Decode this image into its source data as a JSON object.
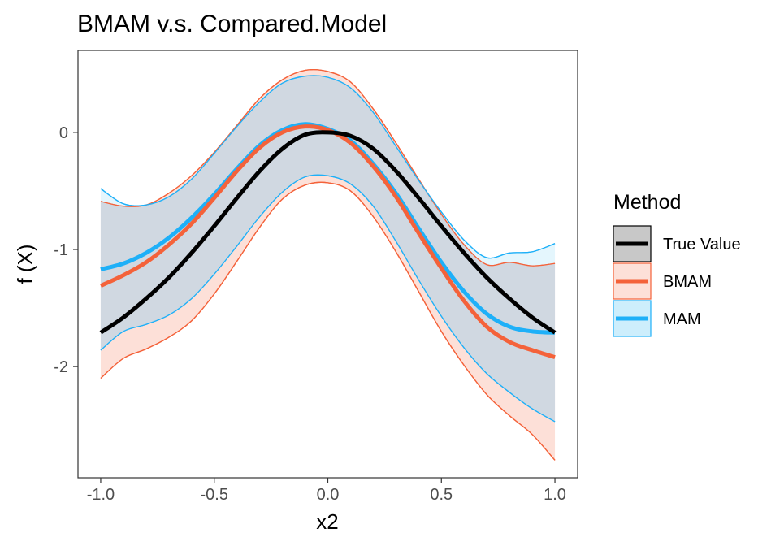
{
  "chart_data": {
    "type": "line",
    "title": "BMAM v.s. Compared.Model",
    "xlabel": "x2",
    "ylabel": "f (X)",
    "xlim": [
      -1.1,
      1.1
    ],
    "ylim": [
      -2.95,
      0.7
    ],
    "xticks": [
      -1.0,
      -0.5,
      0.0,
      0.5,
      1.0
    ],
    "xtick_labels": [
      "-1.0",
      "-0.5",
      "0.0",
      "0.5",
      "1.0"
    ],
    "yticks": [
      -2,
      -1,
      0
    ],
    "ytick_labels": [
      "-2",
      "-1",
      "0"
    ],
    "grid": false,
    "legend": {
      "title": "Method",
      "position": "right",
      "entries": [
        "True Value",
        "BMAM",
        "MAM"
      ]
    },
    "x": [
      -1.0,
      -0.9,
      -0.8,
      -0.7,
      -0.6,
      -0.5,
      -0.4,
      -0.3,
      -0.2,
      -0.1,
      0.0,
      0.1,
      0.2,
      0.3,
      0.4,
      0.5,
      0.6,
      0.7,
      0.8,
      0.9,
      1.0
    ],
    "series": [
      {
        "name": "True Value",
        "color": "#000000",
        "fill": "#c8c8c8",
        "values": [
          -1.71,
          -1.58,
          -1.42,
          -1.24,
          -1.03,
          -0.8,
          -0.56,
          -0.33,
          -0.14,
          -0.02,
          0.0,
          -0.03,
          -0.14,
          -0.33,
          -0.56,
          -0.8,
          -1.03,
          -1.24,
          -1.42,
          -1.58,
          -1.71
        ]
      },
      {
        "name": "BMAM",
        "color": "#f4623a",
        "fill": "#fde0d8",
        "values": [
          -1.31,
          -1.22,
          -1.11,
          -0.96,
          -0.78,
          -0.56,
          -0.33,
          -0.13,
          0.0,
          0.05,
          0.02,
          -0.09,
          -0.29,
          -0.55,
          -0.86,
          -1.16,
          -1.44,
          -1.66,
          -1.79,
          -1.86,
          -1.92
        ],
        "lower": [
          -2.1,
          -1.93,
          -1.85,
          -1.75,
          -1.61,
          -1.38,
          -1.1,
          -0.81,
          -0.57,
          -0.45,
          -0.43,
          -0.5,
          -0.72,
          -1.02,
          -1.36,
          -1.7,
          -1.99,
          -2.24,
          -2.42,
          -2.58,
          -2.8
        ],
        "upper": [
          -0.59,
          -0.63,
          -0.62,
          -0.52,
          -0.37,
          -0.17,
          0.06,
          0.29,
          0.45,
          0.53,
          0.52,
          0.43,
          0.2,
          -0.09,
          -0.4,
          -0.7,
          -0.96,
          -1.13,
          -1.11,
          -1.14,
          -1.12
        ]
      },
      {
        "name": "MAM",
        "color": "#1eb0f8",
        "fill": "#cdeefc",
        "values": [
          -1.17,
          -1.12,
          -1.03,
          -0.9,
          -0.73,
          -0.53,
          -0.31,
          -0.11,
          0.02,
          0.07,
          0.03,
          -0.07,
          -0.27,
          -0.52,
          -0.82,
          -1.11,
          -1.36,
          -1.55,
          -1.66,
          -1.7,
          -1.71
        ],
        "lower": [
          -1.86,
          -1.7,
          -1.64,
          -1.56,
          -1.42,
          -1.21,
          -0.97,
          -0.72,
          -0.51,
          -0.38,
          -0.37,
          -0.44,
          -0.63,
          -0.93,
          -1.26,
          -1.57,
          -1.84,
          -2.06,
          -2.22,
          -2.36,
          -2.47
        ],
        "upper": [
          -0.48,
          -0.61,
          -0.62,
          -0.55,
          -0.4,
          -0.18,
          0.05,
          0.26,
          0.42,
          0.48,
          0.47,
          0.38,
          0.17,
          -0.12,
          -0.41,
          -0.68,
          -0.92,
          -1.07,
          -1.03,
          -1.02,
          -0.95
        ]
      }
    ]
  }
}
